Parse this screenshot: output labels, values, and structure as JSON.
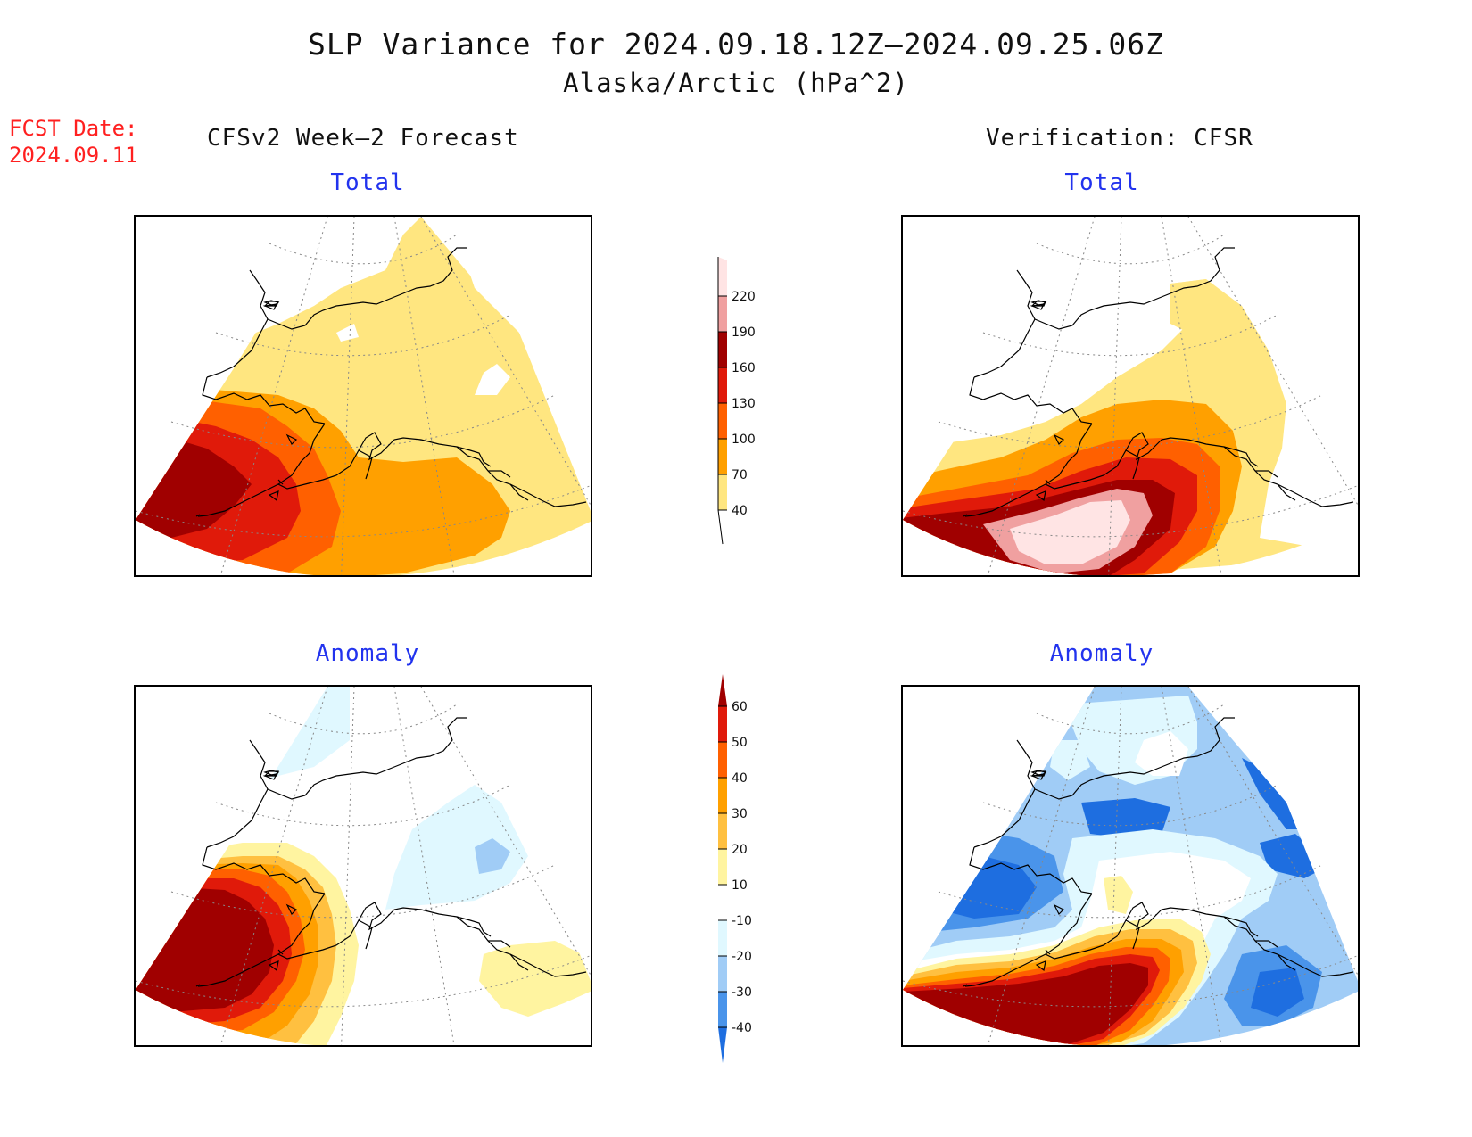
{
  "title": {
    "line1": "SLP Variance for 2024.09.18.12Z—2024.09.25.06Z",
    "line2": "Alaska/Arctic (hPa^2)"
  },
  "fcst": {
    "label": "FCST Date:",
    "date": "2024.09.11"
  },
  "columns": {
    "left": "CFSv2 Week—2 Forecast",
    "right": "Verification: CFSR"
  },
  "panels": {
    "forecast_total": {
      "label": "Total"
    },
    "verification_total": {
      "label": "Total"
    },
    "forecast_anomaly": {
      "label": "Anomaly"
    },
    "verification_anomaly": {
      "label": "Anomaly"
    }
  },
  "colorbars": {
    "total": {
      "ticks": [
        "40",
        "70",
        "100",
        "130",
        "160",
        "190",
        "220"
      ],
      "colors": [
        "#ffe680",
        "#ffa000",
        "#ff6000",
        "#e01a0a",
        "#a00000",
        "#f0a0a0",
        "#ffe4e4"
      ]
    },
    "anomaly": {
      "ticks": [
        "-40",
        "-30",
        "-20",
        "-10",
        "10",
        "20",
        "30",
        "40",
        "50",
        "60"
      ],
      "colors": [
        "#1e6ee0",
        "#4a94ea",
        "#a0ccf6",
        "#e0f8ff",
        "#ffffff",
        "#fff4a0",
        "#ffc040",
        "#ffa000",
        "#ff6000",
        "#e01a0a",
        "#a00000"
      ]
    }
  }
}
